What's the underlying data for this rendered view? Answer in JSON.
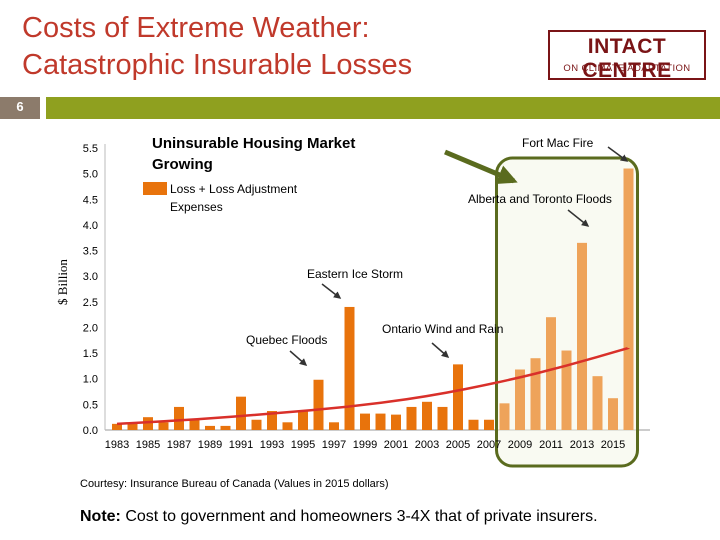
{
  "slide": {
    "title_line1": "Costs of Extreme Weather:",
    "title_line2": "Catastrophic Insurable Losses",
    "number": "6",
    "logo_main": "INTACT CENTRE",
    "logo_sub": "ON CLIMATE ADAPTATION",
    "courtesy": "Courtesy: Insurance Bureau of Canada (Values in 2015 dollars)",
    "note_label": "Note:",
    "note_text": " Cost to government and homeowners 3-4X that of private insurers.",
    "colors": {
      "title": "#c0392b",
      "accent_bar": "#8fa01f",
      "number_box": "#8c7b6b",
      "logo": "#7a1416"
    }
  },
  "chart_data": {
    "type": "bar",
    "ylabel": "$ Billion",
    "ylim": [
      0,
      5.5
    ],
    "yticks": [
      "0.0",
      "0.5",
      "1.0",
      "1.5",
      "2.0",
      "2.5",
      "3.0",
      "3.5",
      "4.0",
      "4.5",
      "5.0",
      "5.5"
    ],
    "x_tick_labels": [
      "1983",
      "1985",
      "1987",
      "1989",
      "1991",
      "1993",
      "1995",
      "1997",
      "1999",
      "2001",
      "2003",
      "2005",
      "2007",
      "2009",
      "2011",
      "2013",
      "2015"
    ],
    "years": [
      1983,
      1984,
      1985,
      1986,
      1987,
      1988,
      1989,
      1990,
      1991,
      1992,
      1993,
      1994,
      1995,
      1996,
      1997,
      1998,
      1999,
      2000,
      2001,
      2002,
      2003,
      2004,
      2005,
      2006,
      2007,
      2008,
      2009,
      2010,
      2011,
      2012,
      2013,
      2014,
      2015,
      2016
    ],
    "values": [
      0.12,
      0.12,
      0.25,
      0.15,
      0.45,
      0.2,
      0.08,
      0.08,
      0.65,
      0.2,
      0.37,
      0.15,
      0.36,
      0.98,
      0.15,
      2.4,
      0.32,
      0.32,
      0.3,
      0.45,
      0.55,
      0.45,
      1.28,
      0.2,
      0.2,
      0.52,
      1.18,
      1.4,
      2.2,
      1.55,
      3.65,
      1.05,
      0.62,
      5.1
    ],
    "legend_label_line1": "Loss + Loss Adjustment",
    "legend_label_line2": "Expenses",
    "legend_position": "top-left",
    "trend": "exponential",
    "trend_points": [
      [
        1983,
        0.12
      ],
      [
        1988,
        0.2
      ],
      [
        1993,
        0.32
      ],
      [
        1998,
        0.45
      ],
      [
        2003,
        0.65
      ],
      [
        2008,
        0.95
      ],
      [
        2012,
        1.25
      ],
      [
        2016,
        1.6
      ]
    ],
    "highlight_range": [
      2008,
      2016
    ],
    "colors": {
      "bar_default": "#e8730c",
      "bar_highlight": "#eea35a",
      "trend": "#d9302a",
      "highlight_box": "#5a6b1e"
    },
    "annotations": [
      {
        "text": "Uninsurable Housing Market Growing",
        "line1": "Uninsurable Housing Market",
        "line2": "Growing",
        "type": "callout"
      },
      {
        "text": "Fort Mac Fire",
        "year": 2016
      },
      {
        "text": "Alberta and Toronto Floods",
        "year": 2013
      },
      {
        "text": "Eastern Ice Storm",
        "year": 1998
      },
      {
        "text": "Ontario Wind and Rain",
        "year": 2005
      },
      {
        "text": "Quebec Floods",
        "year": 1996
      }
    ]
  }
}
